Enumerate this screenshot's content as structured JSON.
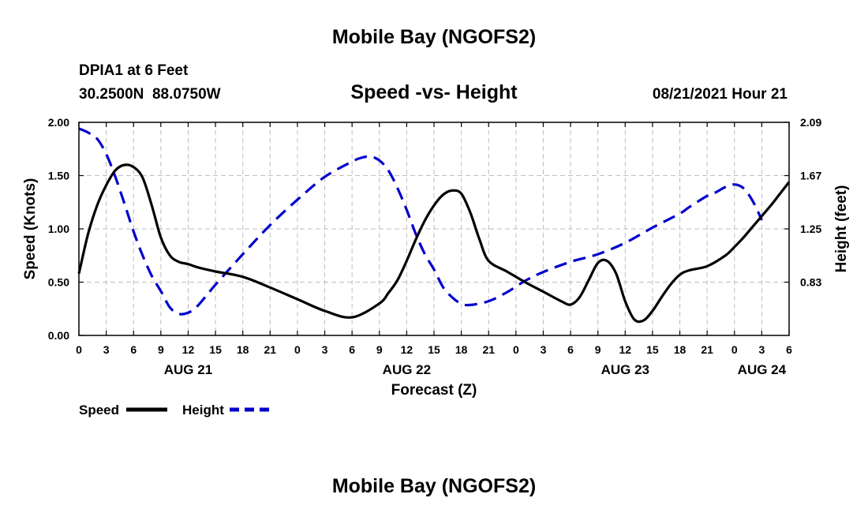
{
  "header": {
    "title_top": "Mobile Bay (NGOFS2)",
    "station": "DPIA1 at 6 Feet",
    "coords": "30.2500N  88.0750W",
    "subtitle": "Speed -vs- Height",
    "datetime": "08/21/2021 Hour 21",
    "title_bottom": "Mobile Bay (NGOFS2)"
  },
  "colors": {
    "speed": "#000000",
    "height": "#0000cc",
    "grid": "#bdbdbd"
  },
  "chart_data": {
    "type": "line",
    "title": "Speed -vs- Height",
    "xlabel": "Forecast (Z)",
    "ylabel": "Speed (Knots)",
    "y2label": "Height (feet)",
    "x_unit": "hours since AUG 21 00Z",
    "xlim": [
      -3,
      75
    ],
    "ylim": [
      0,
      2.0
    ],
    "y2lim": [
      0.41,
      2.09
    ],
    "x_ticks": [
      -3,
      0,
      3,
      6,
      9,
      12,
      15,
      18,
      21,
      24,
      27,
      30,
      33,
      36,
      39,
      42,
      45,
      48,
      51,
      54,
      57,
      60,
      63,
      66,
      69,
      72,
      75
    ],
    "x_tick_labels": [
      "0",
      "3",
      "6",
      "9",
      "12",
      "15",
      "18",
      "21",
      "0",
      "3",
      "6",
      "9",
      "12",
      "15",
      "18",
      "21",
      "0",
      "3",
      "6",
      "9",
      "12",
      "15",
      "18",
      "21",
      "0",
      "3",
      "6"
    ],
    "y_ticks": [
      0,
      0.5,
      1.0,
      1.5,
      2.0
    ],
    "y_tick_labels": [
      "0.00",
      "0.50",
      "1.00",
      "1.50",
      "2.00"
    ],
    "y2_ticks": [
      0.83,
      1.25,
      1.67,
      2.09
    ],
    "y2_tick_labels": [
      "0.83",
      "1.25",
      "1.67",
      "2.09"
    ],
    "day_labels": [
      {
        "label": "AUG 21",
        "x": 9
      },
      {
        "label": "AUG 22",
        "x": 33
      },
      {
        "label": "AUG 23",
        "x": 57
      },
      {
        "label": "AUG 24",
        "x": 72
      }
    ],
    "legend_position": "bottom-left",
    "series": [
      {
        "name": "Speed",
        "axis": "left",
        "style": "solid",
        "x": [
          -3,
          -2,
          -1,
          0,
          1,
          2,
          3,
          4,
          5,
          6,
          7,
          8,
          9,
          10,
          12,
          15,
          18,
          21,
          24,
          27,
          30,
          31,
          32,
          33,
          34,
          35,
          36,
          37,
          38,
          39,
          40,
          41,
          42,
          44,
          46,
          48,
          50,
          51,
          52,
          53,
          54,
          55,
          56,
          57,
          58,
          59,
          60,
          61,
          62,
          63,
          64,
          66,
          68,
          69,
          70,
          71,
          72,
          73,
          74,
          75
        ],
        "values": [
          0.58,
          0.95,
          1.22,
          1.41,
          1.55,
          1.6,
          1.58,
          1.48,
          1.22,
          0.92,
          0.75,
          0.69,
          0.67,
          0.64,
          0.6,
          0.55,
          0.45,
          0.34,
          0.23,
          0.17,
          0.3,
          0.4,
          0.52,
          0.7,
          0.9,
          1.08,
          1.22,
          1.32,
          1.36,
          1.33,
          1.15,
          0.9,
          0.7,
          0.6,
          0.5,
          0.41,
          0.32,
          0.29,
          0.36,
          0.52,
          0.68,
          0.7,
          0.58,
          0.32,
          0.15,
          0.14,
          0.23,
          0.36,
          0.48,
          0.57,
          0.61,
          0.65,
          0.75,
          0.83,
          0.92,
          1.02,
          1.12,
          1.22,
          1.33,
          1.44
        ]
      },
      {
        "name": "Height",
        "axis": "right",
        "style": "dashed",
        "x": [
          -3,
          -2,
          -1,
          0,
          1,
          2,
          3,
          4,
          5,
          6,
          7,
          8,
          9,
          10,
          12,
          15,
          18,
          21,
          24,
          27,
          28,
          29,
          30,
          31,
          32,
          33,
          34,
          35,
          36,
          37,
          38,
          39,
          40,
          42,
          44,
          46,
          48,
          51,
          54,
          57,
          60,
          63,
          64,
          66,
          67,
          68,
          69,
          70,
          71,
          72
        ],
        "values": [
          2.04,
          2.01,
          1.96,
          1.84,
          1.66,
          1.45,
          1.23,
          1.04,
          0.88,
          0.76,
          0.63,
          0.58,
          0.59,
          0.64,
          0.81,
          1.05,
          1.28,
          1.48,
          1.66,
          1.78,
          1.81,
          1.82,
          1.79,
          1.71,
          1.57,
          1.4,
          1.21,
          1.05,
          0.93,
          0.79,
          0.71,
          0.66,
          0.65,
          0.68,
          0.75,
          0.84,
          0.91,
          0.99,
          1.05,
          1.14,
          1.26,
          1.37,
          1.42,
          1.51,
          1.54,
          1.58,
          1.6,
          1.57,
          1.47,
          1.32
        ]
      }
    ]
  }
}
